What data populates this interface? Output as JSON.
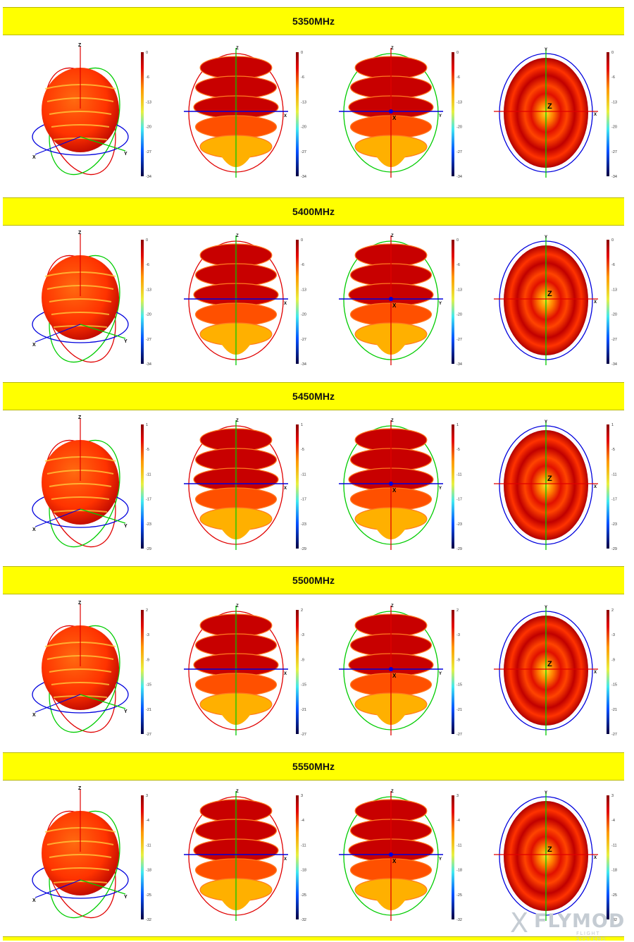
{
  "sections": [
    {
      "label": "5350MHz",
      "scale_ticks": [
        "0",
        "-6",
        "-13",
        "-20",
        "-27",
        "-34"
      ]
    },
    {
      "label": "5400MHz",
      "scale_ticks": [
        "0",
        "-6",
        "-13",
        "-20",
        "-27",
        "-34"
      ]
    },
    {
      "label": "5450MHz",
      "scale_ticks": [
        "1",
        "-5",
        "-11",
        "-17",
        "-23",
        "-29"
      ]
    },
    {
      "label": "5500MHz",
      "scale_ticks": [
        "2",
        "-3",
        "-9",
        "-15",
        "-21",
        "-27"
      ]
    },
    {
      "label": "5550MHz",
      "scale_ticks": [
        "3",
        "-4",
        "-11",
        "-18",
        "-25",
        "-32"
      ]
    }
  ],
  "axis_labels": {
    "x": "X",
    "y": "Y",
    "z": "Z"
  },
  "colors": {
    "band": "#ffff00",
    "pattern_dark": "#b00000",
    "pattern_mid": "#ff3300",
    "pattern_light": "#ffe020",
    "axis_red": "#e00000",
    "axis_green": "#00cc00",
    "axis_blue": "#0000dd"
  },
  "logo": {
    "mark": "X",
    "word": "FLYMOD",
    "sub": "FLIGHT SYSTEMS"
  }
}
